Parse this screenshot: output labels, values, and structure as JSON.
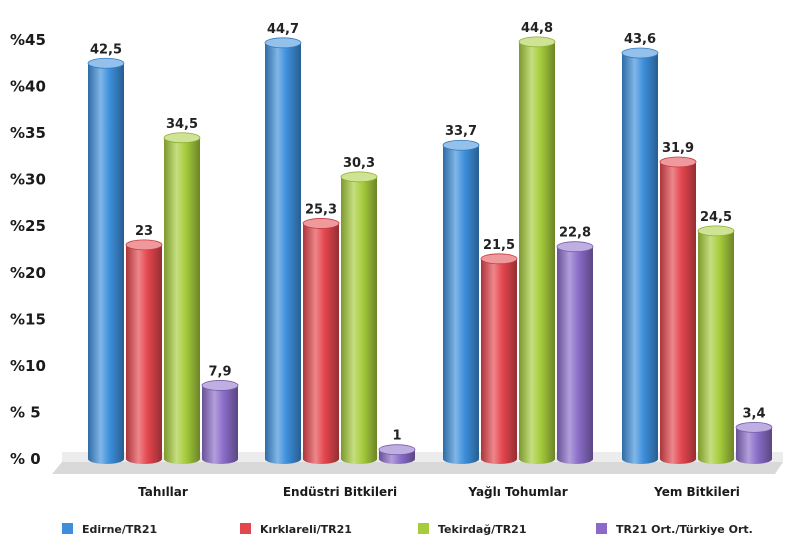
{
  "chart_data": {
    "type": "bar",
    "categories": [
      "Tahıllar",
      "Endüstri Bitkileri",
      "Yağlı Tohumlar",
      "Yem Bitkileri"
    ],
    "series": [
      {
        "name": "Edirne/TR21",
        "color": "#3d8fdc",
        "values": [
          42.5,
          44.7,
          33.7,
          43.6
        ],
        "labels": [
          "42,5",
          "44,7",
          "33,7",
          "43,6"
        ]
      },
      {
        "name": "Kırklareli/TR21",
        "color": "#e4464d",
        "values": [
          23,
          25.3,
          21.5,
          31.9
        ],
        "labels": [
          "23",
          "25,3",
          "21,5",
          "31,9"
        ]
      },
      {
        "name": "Tekirdağ/TR21",
        "color": "#a6cc3c",
        "values": [
          34.5,
          30.3,
          44.8,
          24.5
        ],
        "labels": [
          "34,5",
          "30,3",
          "44,8",
          "24,5"
        ]
      },
      {
        "name": "TR21 Ort./Türkiye Ort.",
        "color": "#8a6cc8",
        "values": [
          7.9,
          1,
          22.8,
          3.4
        ],
        "labels": [
          "7,9",
          "1",
          "22,8",
          "3,4"
        ]
      }
    ],
    "yticks": [
      "% 0",
      "% 5",
      "%10",
      "%15",
      "%20",
      "%25",
      "%30",
      "%35",
      "%40",
      "%45"
    ],
    "ylim": [
      0,
      45
    ],
    "grid": false,
    "legend": "bottom"
  }
}
